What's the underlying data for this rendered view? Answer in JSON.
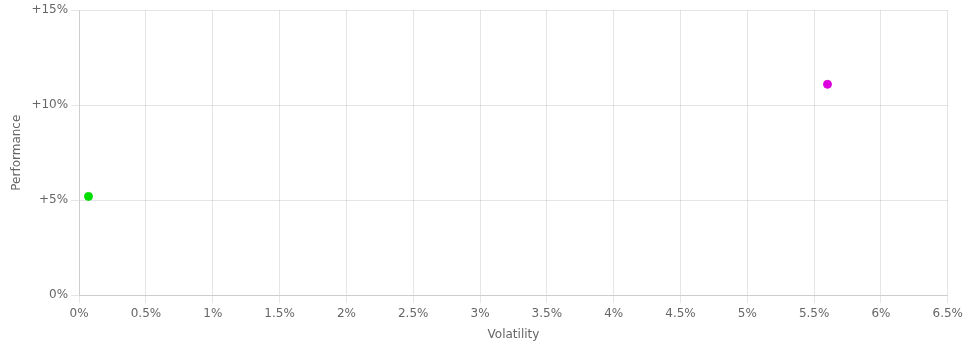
{
  "chart_data": {
    "type": "scatter",
    "xlabel": "Volatility",
    "ylabel": "Performance",
    "x": [
      0.0007,
      0.056
    ],
    "values": [
      0.052,
      0.111
    ],
    "colors": [
      "#00dd00",
      "#dd00dd"
    ],
    "marker": "circle",
    "xlim": [
      0.0,
      0.065
    ],
    "ylim": [
      0.0,
      0.15
    ],
    "xticks": [
      {
        "value": 0.0,
        "label": "0%"
      },
      {
        "value": 0.005,
        "label": "0.5%"
      },
      {
        "value": 0.01,
        "label": "1%"
      },
      {
        "value": 0.015,
        "label": "1.5%"
      },
      {
        "value": 0.02,
        "label": "2%"
      },
      {
        "value": 0.025,
        "label": "2.5%"
      },
      {
        "value": 0.03,
        "label": "3%"
      },
      {
        "value": 0.035,
        "label": "3.5%"
      },
      {
        "value": 0.04,
        "label": "4%"
      },
      {
        "value": 0.045,
        "label": "4.5%"
      },
      {
        "value": 0.05,
        "label": "5%"
      },
      {
        "value": 0.055,
        "label": "5.5%"
      },
      {
        "value": 0.06,
        "label": "6%"
      },
      {
        "value": 0.065,
        "label": "6.5%"
      }
    ],
    "yticks": [
      {
        "value": 0.0,
        "label": "0%"
      },
      {
        "value": 0.05,
        "label": "+5%"
      },
      {
        "value": 0.1,
        "label": "+10%"
      },
      {
        "value": 0.15,
        "label": "+15%"
      }
    ],
    "grid": true
  }
}
